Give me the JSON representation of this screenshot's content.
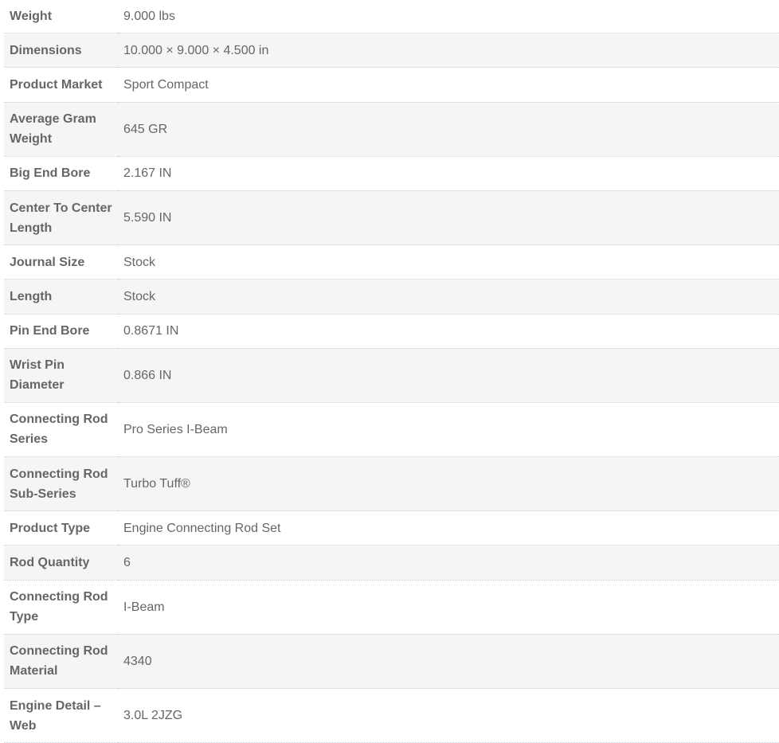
{
  "attributes": [
    {
      "label": "Weight",
      "value": "9.000 lbs"
    },
    {
      "label": "Dimensions",
      "value": "10.000 × 9.000 × 4.500 in"
    },
    {
      "label": "Product Market",
      "value": "Sport Compact"
    },
    {
      "label": "Average Gram Weight",
      "value": "645 GR"
    },
    {
      "label": "Big End Bore",
      "value": "2.167 IN"
    },
    {
      "label": "Center To Center Length",
      "value": "5.590 IN"
    },
    {
      "label": "Journal Size",
      "value": "Stock"
    },
    {
      "label": "Length",
      "value": "Stock"
    },
    {
      "label": "Pin End Bore",
      "value": "0.8671 IN"
    },
    {
      "label": "Wrist Pin Diameter",
      "value": "0.866 IN"
    },
    {
      "label": "Connecting Rod Series",
      "value": "Pro Series I-Beam"
    },
    {
      "label": "Connecting Rod Sub-Series",
      "value": "Turbo Tuff®"
    },
    {
      "label": "Product Type",
      "value": "Engine Connecting Rod Set"
    },
    {
      "label": "Rod Quantity",
      "value": "6"
    },
    {
      "label": "Connecting Rod Type",
      "value": "I-Beam"
    },
    {
      "label": "Connecting Rod Material",
      "value": "4340"
    },
    {
      "label": "Engine Detail – Web",
      "value": "3.0L 2JZG"
    }
  ]
}
